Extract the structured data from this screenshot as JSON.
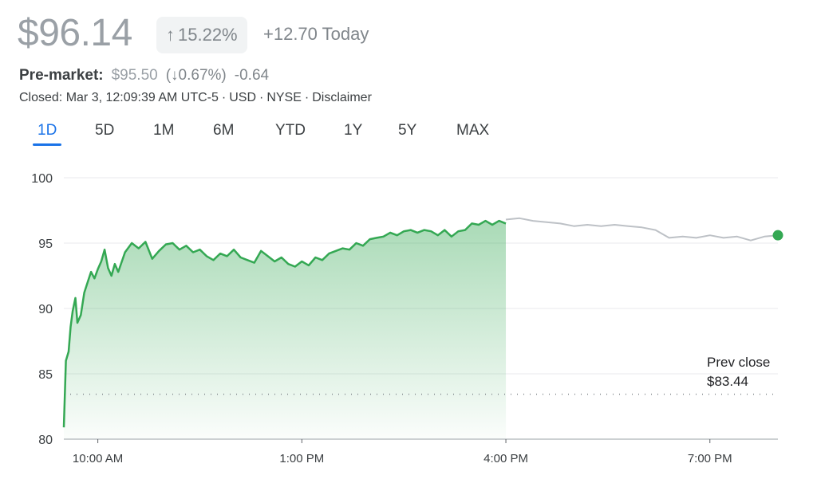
{
  "quote": {
    "price": "$96.14",
    "change_pct": "15.22%",
    "change_pct_arrow": "arrow-up-icon",
    "change_today": "+12.70 Today",
    "premarket_label": "Pre-market:",
    "premarket_price": "$95.50",
    "premarket_pct": "(↓0.67%)",
    "premarket_change": "-0.64",
    "closed_text": "Closed: Mar 3, 12:09:39 AM UTC-5",
    "currency": "USD",
    "exchange": "NYSE",
    "disclaimer": "Disclaimer",
    "separator": "·"
  },
  "tabs": [
    {
      "label": "1D",
      "active": true
    },
    {
      "label": "5D",
      "active": false
    },
    {
      "label": "1M",
      "active": false
    },
    {
      "label": "6M",
      "active": false
    },
    {
      "label": "YTD",
      "active": false
    },
    {
      "label": "1Y",
      "active": false
    },
    {
      "label": "5Y",
      "active": false
    },
    {
      "label": "MAX",
      "active": false
    }
  ],
  "colors": {
    "up": "#34a853",
    "after_hours": "#bdc1c6",
    "accent": "#1a73e8",
    "grid": "#e8eaed"
  },
  "chart_data": {
    "type": "line",
    "ylim": [
      80,
      100
    ],
    "y_ticks": [
      80,
      85,
      90,
      95,
      100
    ],
    "x_range_hours": [
      9.5,
      20
    ],
    "x_ticks": [
      {
        "hour": 10,
        "label": "10:00 AM"
      },
      {
        "hour": 13,
        "label": "1:00 PM"
      },
      {
        "hour": 16,
        "label": "4:00 PM"
      },
      {
        "hour": 19,
        "label": "7:00 PM"
      }
    ],
    "prev_close": 83.44,
    "prev_close_label": "Prev close",
    "prev_close_value_label": "$83.44",
    "series": [
      {
        "session": "regular",
        "x": [
          9.5,
          9.53,
          9.57,
          9.6,
          9.63,
          9.67,
          9.7,
          9.75,
          9.8,
          9.85,
          9.9,
          9.95,
          10.0,
          10.05,
          10.1,
          10.15,
          10.2,
          10.25,
          10.3,
          10.4,
          10.5,
          10.6,
          10.7,
          10.8,
          10.9,
          11.0,
          11.1,
          11.2,
          11.3,
          11.4,
          11.5,
          11.6,
          11.7,
          11.8,
          11.9,
          12.0,
          12.1,
          12.2,
          12.3,
          12.4,
          12.5,
          12.6,
          12.7,
          12.8,
          12.9,
          13.0,
          13.1,
          13.2,
          13.3,
          13.4,
          13.5,
          13.6,
          13.7,
          13.8,
          13.9,
          14.0,
          14.1,
          14.2,
          14.3,
          14.4,
          14.5,
          14.6,
          14.7,
          14.8,
          14.9,
          15.0,
          15.1,
          15.2,
          15.3,
          15.4,
          15.5,
          15.6,
          15.7,
          15.8,
          15.9,
          16.0
        ],
        "y": [
          80.9,
          86.0,
          86.7,
          88.6,
          89.8,
          90.8,
          88.9,
          89.5,
          91.2,
          92.0,
          92.8,
          92.3,
          93.0,
          93.6,
          94.5,
          93.1,
          92.5,
          93.4,
          92.8,
          94.3,
          95.0,
          94.6,
          95.1,
          93.8,
          94.4,
          94.9,
          95.0,
          94.5,
          94.8,
          94.3,
          94.5,
          94.0,
          93.7,
          94.2,
          94.0,
          94.5,
          93.9,
          93.7,
          93.5,
          94.4,
          94.0,
          93.6,
          93.9,
          93.4,
          93.2,
          93.6,
          93.3,
          93.9,
          93.7,
          94.2,
          94.4,
          94.6,
          94.5,
          95.0,
          94.8,
          95.3,
          95.4,
          95.5,
          95.8,
          95.6,
          95.9,
          96.0,
          95.8,
          96.0,
          95.9,
          95.6,
          96.0,
          95.5,
          95.9,
          96.0,
          96.5,
          96.4,
          96.7,
          96.4,
          96.7,
          96.5
        ]
      },
      {
        "session": "after-hours",
        "x": [
          16.0,
          16.2,
          16.4,
          16.6,
          16.8,
          17.0,
          17.2,
          17.4,
          17.6,
          17.8,
          18.0,
          18.2,
          18.4,
          18.6,
          18.8,
          19.0,
          19.2,
          19.4,
          19.6,
          19.8,
          20.0
        ],
        "y": [
          96.8,
          96.9,
          96.7,
          96.6,
          96.5,
          96.3,
          96.4,
          96.3,
          96.4,
          96.3,
          96.2,
          96.0,
          95.4,
          95.5,
          95.4,
          95.6,
          95.4,
          95.5,
          95.2,
          95.5,
          95.6
        ]
      }
    ]
  }
}
